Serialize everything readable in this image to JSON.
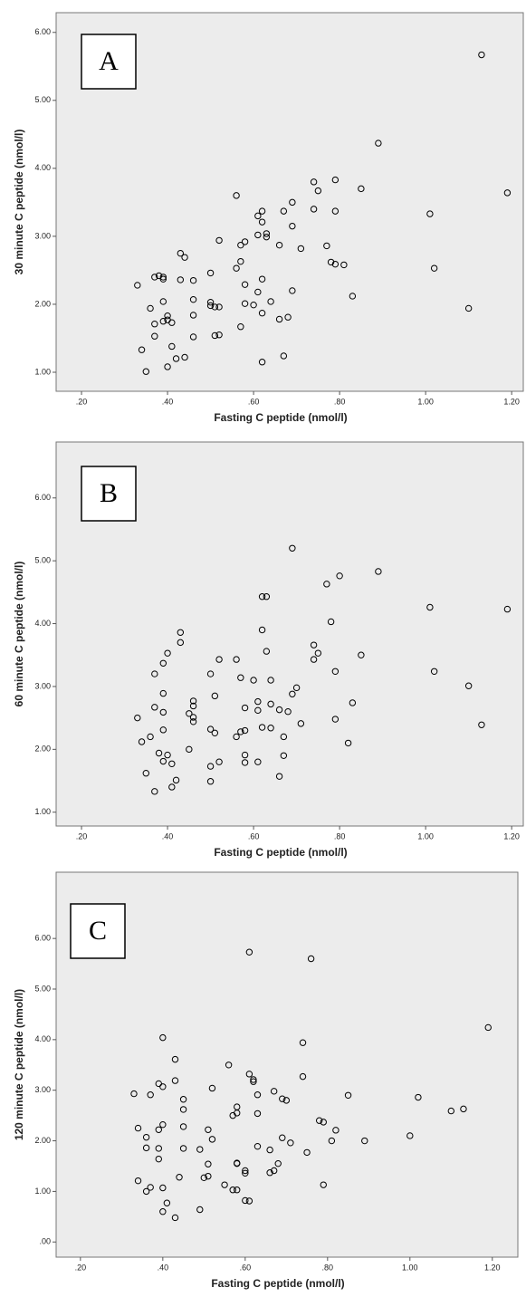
{
  "chart_data": [
    {
      "type": "scatter",
      "label": "A",
      "x_label": "Fasting C peptide (nmol/l)",
      "y_label": "30 minute C peptide (nmol/l)",
      "color": "#000000",
      "xlim": [
        0.141,
        1.227
      ],
      "ylim": [
        0.72,
        6.29
      ],
      "xticks": [
        {
          "value": 0.2,
          "label": ".20"
        },
        {
          "value": 0.4,
          "label": ".40"
        },
        {
          "value": 0.6,
          "label": ".60"
        },
        {
          "value": 0.8,
          "label": ".80"
        },
        {
          "value": 1.0,
          "label": "1.00"
        },
        {
          "value": 1.2,
          "label": "1.20"
        }
      ],
      "yticks": [
        {
          "value": 1,
          "label": "1.00"
        },
        {
          "value": 2,
          "label": "2.00"
        },
        {
          "value": 3,
          "label": "3.00"
        },
        {
          "value": 4,
          "label": "4.00"
        },
        {
          "value": 5,
          "label": "5.00"
        },
        {
          "value": 6,
          "label": "6.00"
        }
      ],
      "x": [
        1.13,
        0.89,
        1.19,
        1.01,
        1.02,
        1.1,
        0.85,
        0.79,
        0.74,
        0.75,
        0.74,
        0.79,
        0.69,
        0.67,
        0.62,
        0.61,
        0.62,
        0.63,
        0.63,
        0.61,
        0.69,
        0.56,
        0.58,
        0.57,
        0.66,
        0.71,
        0.77,
        0.78,
        0.79,
        0.81,
        0.83,
        0.68,
        0.66,
        0.69,
        0.64,
        0.62,
        0.61,
        0.62,
        0.58,
        0.57,
        0.56,
        0.58,
        0.6,
        0.57,
        0.62,
        0.67,
        0.52,
        0.5,
        0.5,
        0.5,
        0.51,
        0.52,
        0.51,
        0.52,
        0.46,
        0.43,
        0.44,
        0.43,
        0.46,
        0.46,
        0.46,
        0.44,
        0.42,
        0.4,
        0.41,
        0.37,
        0.37,
        0.36,
        0.39,
        0.39,
        0.39,
        0.38,
        0.37,
        0.33,
        0.4,
        0.39,
        0.4,
        0.41,
        0.34,
        0.35
      ],
      "values": [
        5.67,
        4.37,
        3.64,
        3.33,
        2.53,
        1.94,
        3.7,
        3.83,
        3.8,
        3.67,
        3.4,
        3.37,
        3.5,
        3.37,
        3.37,
        3.3,
        3.21,
        3.04,
        2.99,
        3.02,
        3.15,
        3.6,
        2.92,
        2.87,
        2.87,
        2.82,
        2.86,
        2.62,
        2.59,
        2.58,
        2.12,
        1.81,
        1.78,
        2.2,
        2.04,
        2.37,
        2.18,
        1.87,
        2.29,
        2.63,
        2.53,
        2.01,
        1.99,
        1.67,
        1.15,
        1.24,
        2.94,
        2.46,
        2.03,
        1.98,
        1.96,
        1.96,
        1.54,
        1.55,
        2.35,
        2.75,
        2.69,
        2.36,
        2.07,
        1.84,
        1.52,
        1.22,
        1.2,
        1.08,
        1.38,
        1.53,
        1.71,
        1.94,
        2.04,
        2.37,
        2.4,
        2.42,
        2.4,
        2.28,
        1.83,
        1.75,
        1.77,
        1.73,
        1.33,
        1.01
      ]
    },
    {
      "type": "scatter",
      "label": "B",
      "x_label": "Fasting C peptide (nmol/l)",
      "y_label": "60 minute C peptide (nmol/l)",
      "color": "#000000",
      "xlim": [
        0.141,
        1.227
      ],
      "ylim": [
        0.78,
        6.89
      ],
      "xticks": [
        {
          "value": 0.2,
          "label": ".20"
        },
        {
          "value": 0.4,
          "label": ".40"
        },
        {
          "value": 0.6,
          "label": ".60"
        },
        {
          "value": 0.8,
          "label": ".80"
        },
        {
          "value": 1.0,
          "label": "1.00"
        },
        {
          "value": 1.2,
          "label": "1.20"
        }
      ],
      "yticks": [
        {
          "value": 1,
          "label": "1.00"
        },
        {
          "value": 2,
          "label": "2.00"
        },
        {
          "value": 3,
          "label": "3.00"
        },
        {
          "value": 4,
          "label": "4.00"
        },
        {
          "value": 5,
          "label": "5.00"
        },
        {
          "value": 6,
          "label": "6.00"
        }
      ],
      "x": [
        0.69,
        0.89,
        0.8,
        0.77,
        0.62,
        0.63,
        1.01,
        1.19,
        0.78,
        0.62,
        0.43,
        0.43,
        0.74,
        0.75,
        0.74,
        0.85,
        0.63,
        0.56,
        0.52,
        0.4,
        0.39,
        0.37,
        0.5,
        0.57,
        0.6,
        0.64,
        0.7,
        0.69,
        0.79,
        1.02,
        1.1,
        1.13,
        0.83,
        0.79,
        0.82,
        0.68,
        0.66,
        0.71,
        0.67,
        0.67,
        0.66,
        0.61,
        0.61,
        0.62,
        0.64,
        0.64,
        0.61,
        0.58,
        0.58,
        0.57,
        0.56,
        0.58,
        0.58,
        0.51,
        0.5,
        0.51,
        0.52,
        0.5,
        0.5,
        0.46,
        0.46,
        0.45,
        0.46,
        0.46,
        0.45,
        0.42,
        0.41,
        0.4,
        0.41,
        0.39,
        0.38,
        0.39,
        0.39,
        0.39,
        0.37,
        0.36,
        0.34,
        0.33,
        0.35,
        0.37
      ],
      "values": [
        5.2,
        4.83,
        4.76,
        4.63,
        4.43,
        4.43,
        4.26,
        4.23,
        4.03,
        3.9,
        3.86,
        3.7,
        3.66,
        3.53,
        3.43,
        3.5,
        3.56,
        3.43,
        3.43,
        3.53,
        3.37,
        3.2,
        3.2,
        3.14,
        3.1,
        3.1,
        2.98,
        2.88,
        3.24,
        3.24,
        3.01,
        2.39,
        2.74,
        2.48,
        2.1,
        2.6,
        2.63,
        2.41,
        2.2,
        1.9,
        1.57,
        2.76,
        2.62,
        2.35,
        2.72,
        2.34,
        1.8,
        2.66,
        2.3,
        2.28,
        2.2,
        1.91,
        1.79,
        2.85,
        2.32,
        2.26,
        1.8,
        1.73,
        1.49,
        2.77,
        2.69,
        2.57,
        2.51,
        2.44,
        2.0,
        1.51,
        1.4,
        1.91,
        1.77,
        1.81,
        1.94,
        2.89,
        2.59,
        2.31,
        2.67,
        2.2,
        2.12,
        2.5,
        1.62,
        1.33
      ]
    },
    {
      "type": "scatter",
      "label": "C",
      "x_label": "Fasting C peptide (nmol/l)",
      "y_label": "120 minute C peptide (nmol/l)",
      "color": "#000000",
      "xlim": [
        0.141,
        1.262
      ],
      "ylim": [
        -0.3,
        7.31
      ],
      "xticks": [
        {
          "value": 0.2,
          "label": ".20"
        },
        {
          "value": 0.4,
          "label": ".40"
        },
        {
          "value": 0.6,
          "label": ".60"
        },
        {
          "value": 0.8,
          "label": ".80"
        },
        {
          "value": 1.0,
          "label": "1.00"
        },
        {
          "value": 1.2,
          "label": "1.20"
        }
      ],
      "yticks": [
        {
          "value": 0,
          "label": ".00"
        },
        {
          "value": 1,
          "label": "1.00"
        },
        {
          "value": 2,
          "label": "2.00"
        },
        {
          "value": 3,
          "label": "3.00"
        },
        {
          "value": 4,
          "label": "4.00"
        },
        {
          "value": 5,
          "label": "5.00"
        },
        {
          "value": 6,
          "label": "6.00"
        }
      ],
      "x": [
        0.61,
        0.76,
        1.19,
        0.74,
        0.4,
        0.43,
        0.56,
        0.74,
        0.61,
        0.62,
        0.62,
        0.43,
        0.39,
        0.4,
        0.52,
        0.67,
        0.33,
        0.37,
        0.45,
        0.63,
        0.69,
        0.7,
        0.85,
        1.02,
        1.1,
        1.13,
        0.58,
        0.57,
        0.58,
        0.63,
        0.45,
        0.34,
        0.39,
        0.4,
        0.45,
        0.51,
        0.78,
        0.79,
        0.82,
        0.81,
        0.89,
        1.0,
        0.69,
        0.71,
        0.63,
        0.52,
        0.36,
        0.36,
        0.39,
        0.45,
        0.49,
        0.39,
        0.66,
        0.75,
        0.58,
        0.58,
        0.51,
        0.55,
        0.68,
        0.67,
        0.66,
        0.6,
        0.6,
        0.57,
        0.58,
        0.51,
        0.5,
        0.44,
        0.34,
        0.37,
        0.36,
        0.4,
        0.79,
        0.6,
        0.61,
        0.41,
        0.4,
        0.49,
        0.43
      ],
      "values": [
        5.73,
        5.6,
        4.24,
        3.94,
        4.04,
        3.61,
        3.5,
        3.27,
        3.32,
        3.21,
        3.17,
        3.19,
        3.13,
        3.07,
        3.04,
        2.98,
        2.93,
        2.91,
        2.82,
        2.91,
        2.83,
        2.8,
        2.9,
        2.86,
        2.59,
        2.63,
        2.67,
        2.5,
        2.55,
        2.54,
        2.62,
        2.25,
        2.22,
        2.32,
        2.28,
        2.22,
        2.4,
        2.37,
        2.21,
        2.0,
        2.0,
        2.1,
        2.06,
        1.96,
        1.89,
        2.03,
        2.07,
        1.86,
        1.85,
        1.85,
        1.83,
        1.64,
        1.82,
        1.77,
        1.55,
        1.56,
        1.54,
        1.13,
        1.55,
        1.41,
        1.37,
        1.41,
        1.36,
        1.03,
        1.03,
        1.3,
        1.27,
        1.28,
        1.21,
        1.08,
        1.0,
        1.07,
        1.13,
        0.82,
        0.81,
        0.77,
        0.6,
        0.64,
        0.48
      ]
    }
  ]
}
